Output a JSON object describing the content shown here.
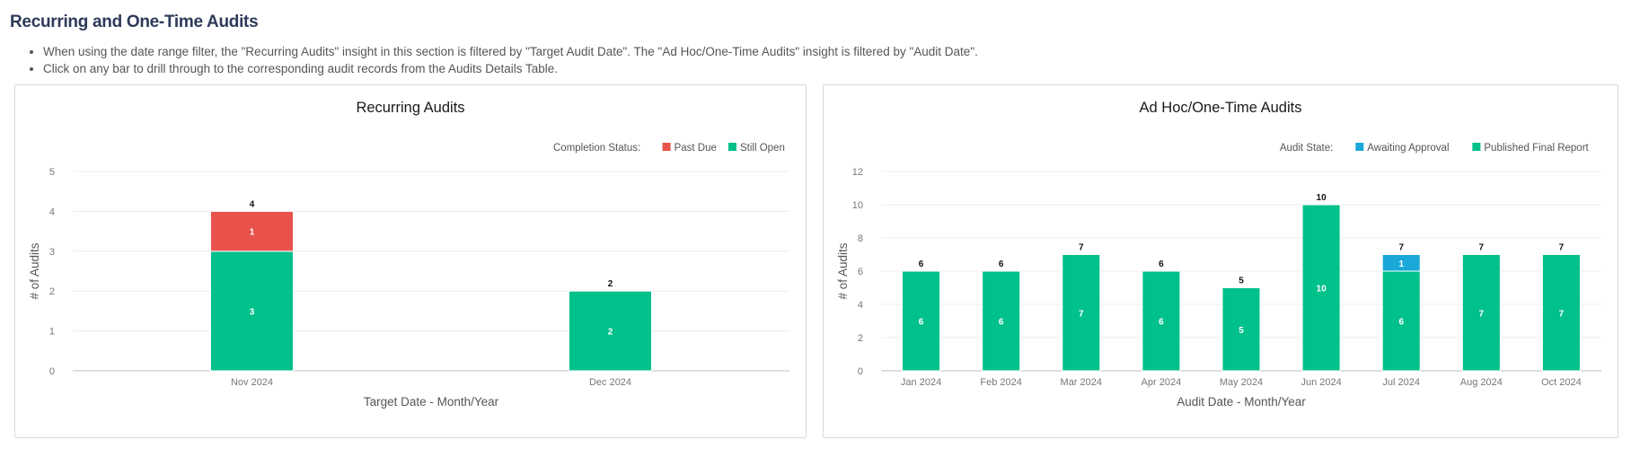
{
  "section": {
    "title": "Recurring and One-Time Audits",
    "notes": [
      "When using the date range filter, the \"Recurring Audits\" insight in this section is filtered by \"Target Audit Date\". The \"Ad Hoc/One-Time Audits\" insight is filtered by \"Audit Date\".",
      "Click on any bar to drill through to the corresponding audit records from the Audits Details Table."
    ]
  },
  "colors": {
    "past_due": "#e8524a",
    "still_open": "#00c08b",
    "awaiting_approval": "#1aa8d8",
    "published_final_report": "#00c08b"
  },
  "chart_data": [
    {
      "type": "bar",
      "stacked": true,
      "title": "Recurring Audits",
      "legend_title": "Completion Status:",
      "legend_position": "top-right",
      "xlabel": "Target Date - Month/Year",
      "ylabel": "# of Audits",
      "ylim": [
        0,
        5
      ],
      "yticks": [
        0,
        1,
        2,
        3,
        4,
        5
      ],
      "grid": true,
      "categories": [
        "Nov 2024",
        "Dec 2024"
      ],
      "series": [
        {
          "name": "Still Open",
          "color": "#00c08b",
          "values": [
            3,
            2
          ]
        },
        {
          "name": "Past Due",
          "color": "#e8524a",
          "values": [
            1,
            0
          ]
        }
      ],
      "legend_order": [
        "Past Due",
        "Still Open"
      ],
      "totals": [
        4,
        2
      ]
    },
    {
      "type": "bar",
      "stacked": true,
      "title": "Ad Hoc/One-Time Audits",
      "legend_title": "Audit State:",
      "legend_position": "top-right",
      "xlabel": "Audit Date - Month/Year",
      "ylabel": "# of Audits",
      "ylim": [
        0,
        12
      ],
      "yticks": [
        0,
        2,
        4,
        6,
        8,
        10,
        12
      ],
      "grid": true,
      "categories": [
        "Jan 2024",
        "Feb 2024",
        "Mar 2024",
        "Apr 2024",
        "May 2024",
        "Jun 2024",
        "Jul 2024",
        "Aug 2024",
        "Oct 2024"
      ],
      "series": [
        {
          "name": "Published Final Report",
          "color": "#00c08b",
          "values": [
            6,
            6,
            7,
            6,
            5,
            10,
            6,
            7,
            7
          ]
        },
        {
          "name": "Awaiting Approval",
          "color": "#1aa8d8",
          "values": [
            0,
            0,
            0,
            0,
            0,
            0,
            1,
            0,
            0
          ]
        }
      ],
      "legend_order": [
        "Awaiting Approval",
        "Published Final Report"
      ],
      "totals": [
        6,
        6,
        7,
        6,
        5,
        10,
        7,
        7,
        7
      ]
    }
  ]
}
